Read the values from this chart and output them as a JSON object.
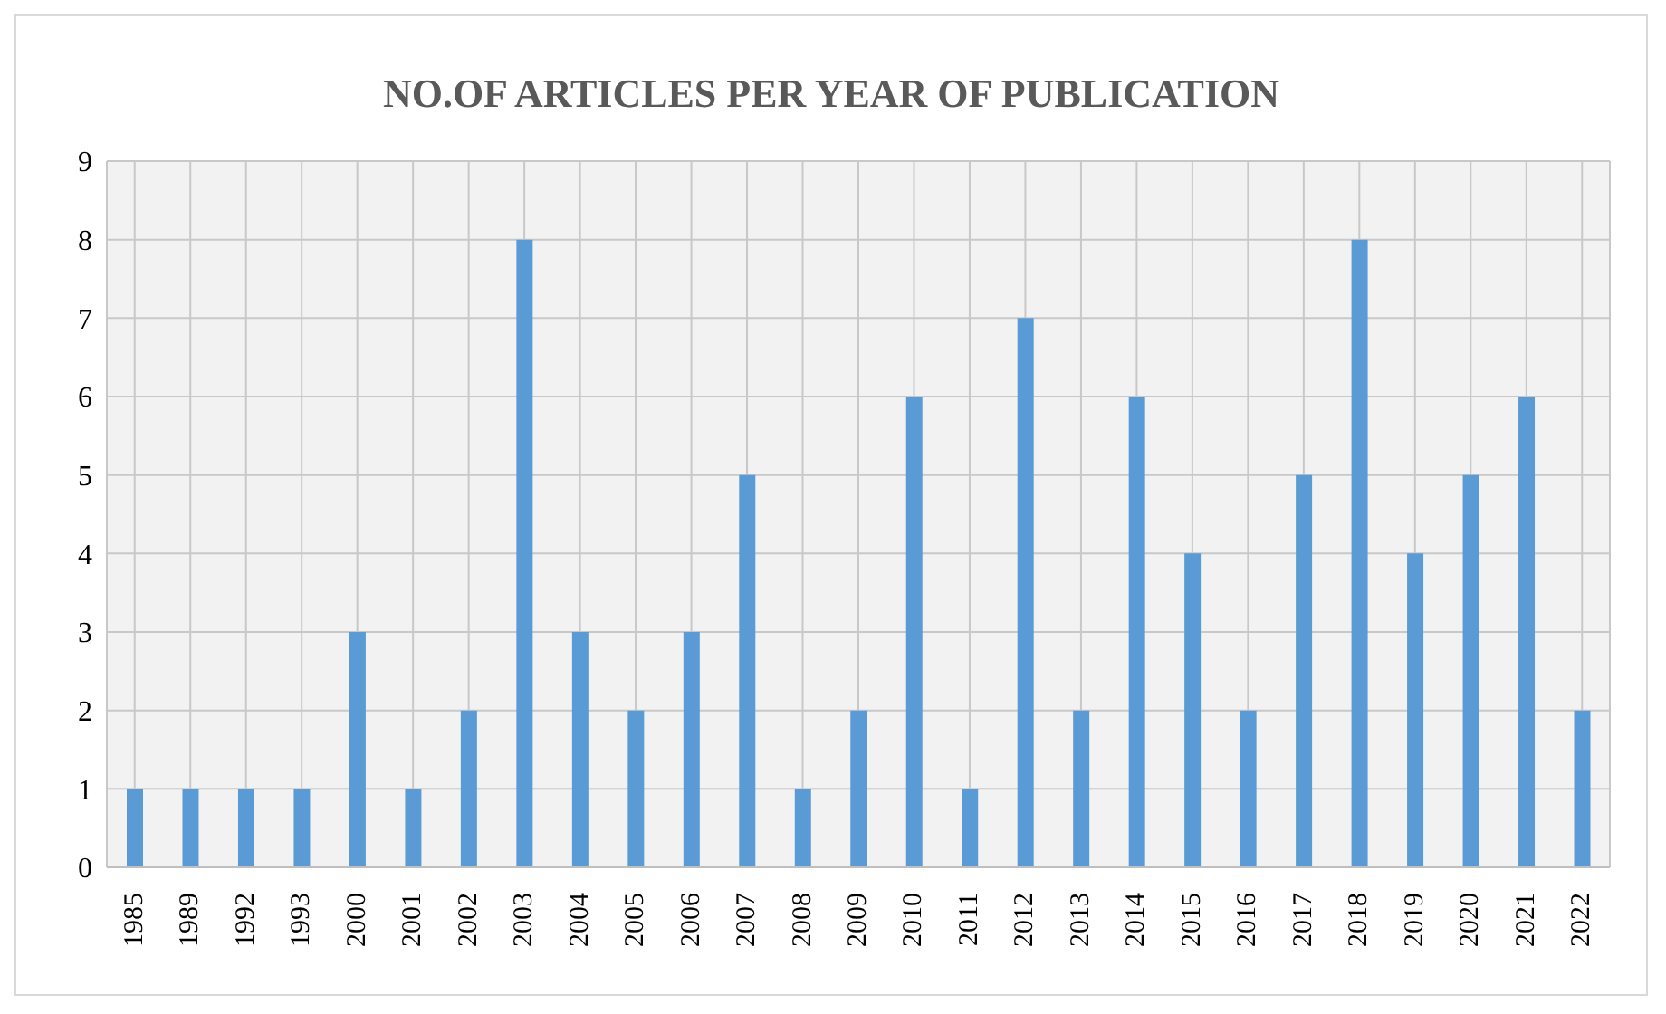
{
  "chart_data": {
    "type": "bar",
    "title": "NO.OF ARTICLES PER YEAR OF PUBLICATION",
    "categories": [
      "1985",
      "1989",
      "1992",
      "1993",
      "2000",
      "2001",
      "2002",
      "2003",
      "2004",
      "2005",
      "2006",
      "2007",
      "2008",
      "2009",
      "2010",
      "2011",
      "2012",
      "2013",
      "2014",
      "2015",
      "2016",
      "2017",
      "2018",
      "2019",
      "2020",
      "2021",
      "2022"
    ],
    "values": [
      1,
      1,
      1,
      1,
      3,
      1,
      2,
      8,
      3,
      2,
      3,
      5,
      1,
      2,
      6,
      1,
      7,
      2,
      6,
      4,
      2,
      5,
      8,
      4,
      5,
      6,
      2
    ],
    "color": "#5b9bd5",
    "ylim": [
      0,
      9
    ],
    "yticks": [
      0,
      1,
      2,
      3,
      4,
      5,
      6,
      7,
      8,
      9
    ],
    "grid": true
  }
}
